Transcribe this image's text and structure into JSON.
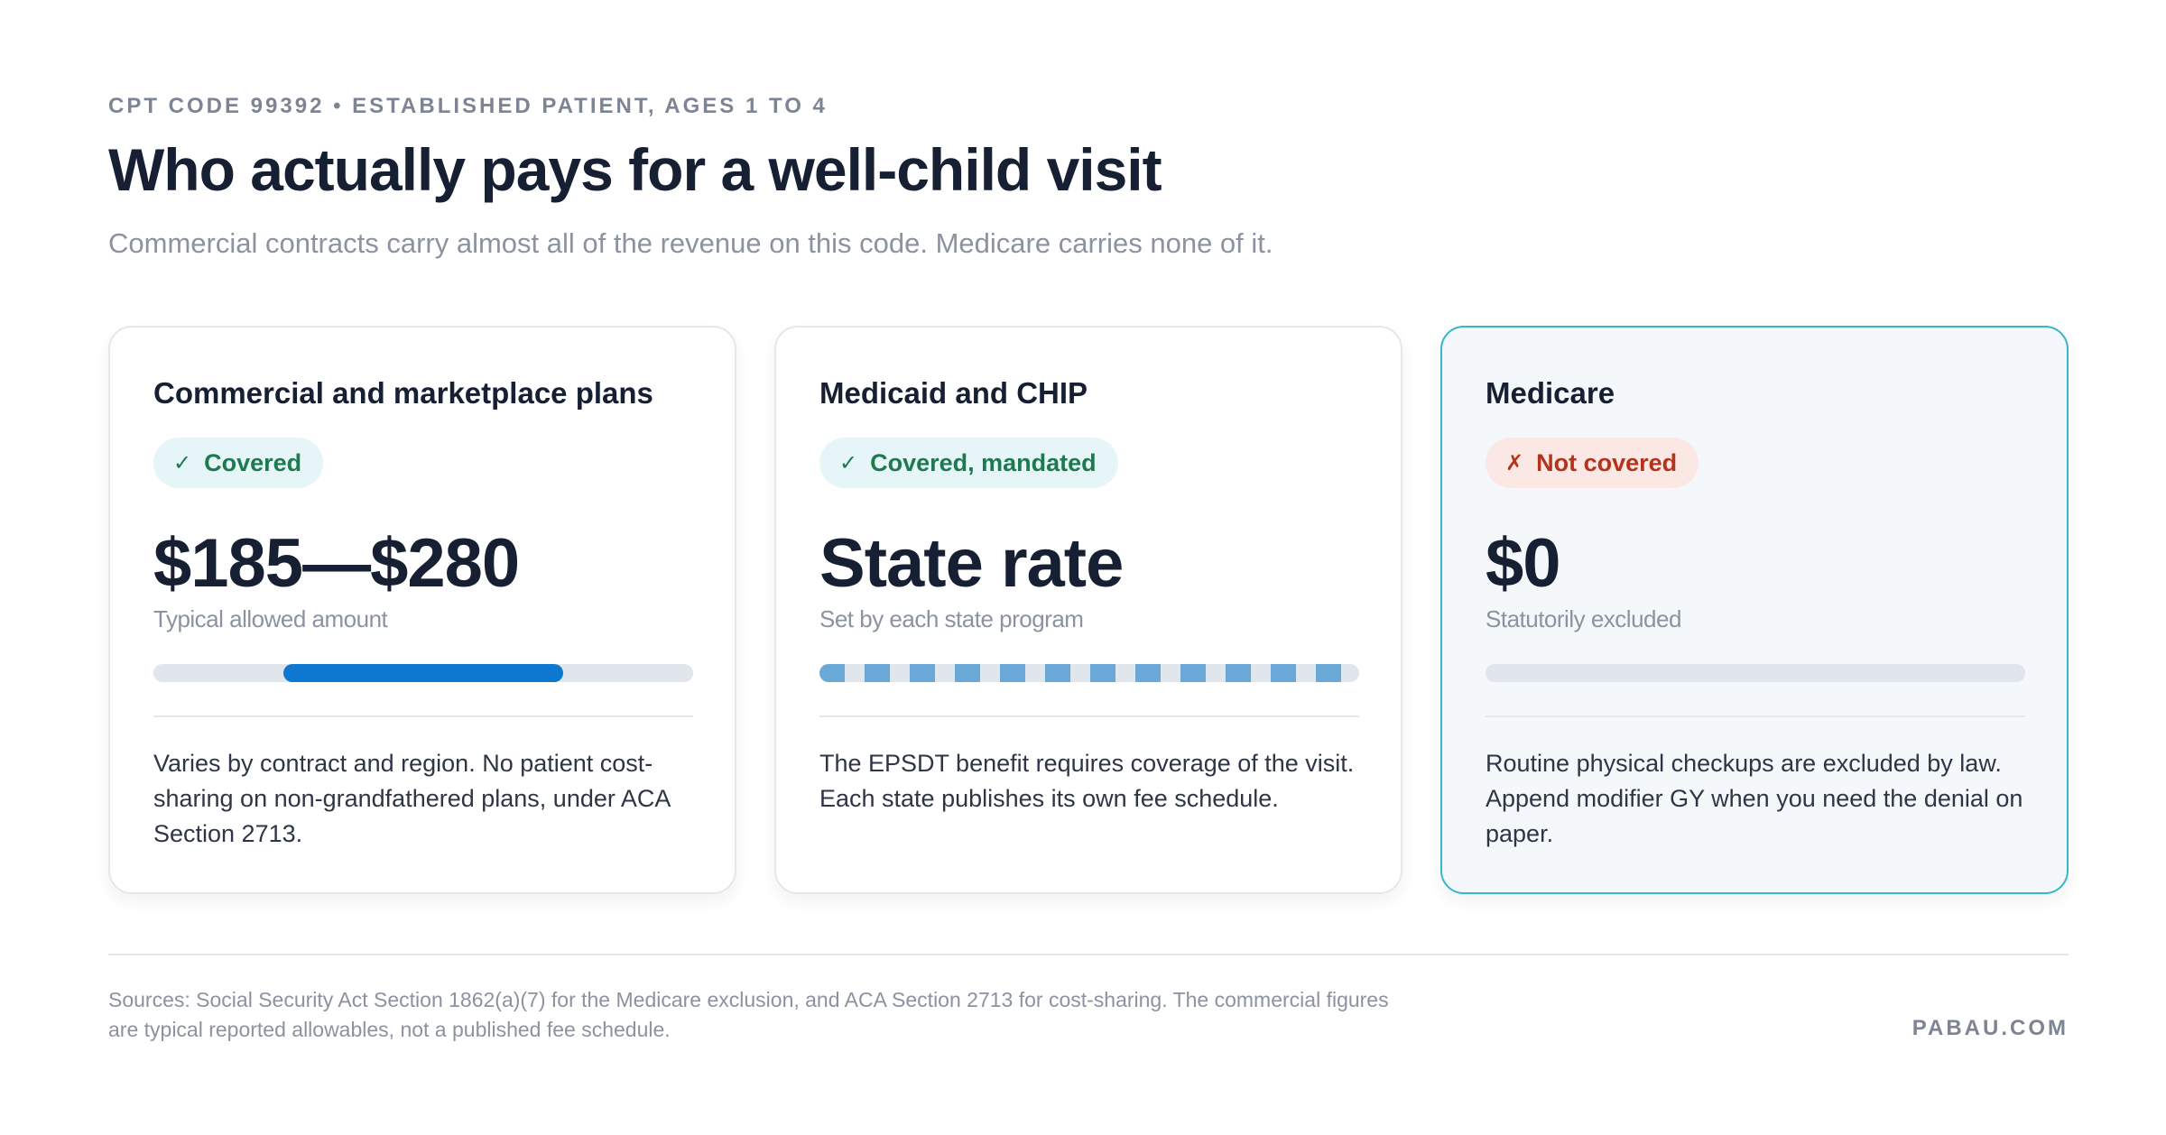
{
  "header": {
    "eyebrow": "CPT CODE 99392 • ESTABLISHED PATIENT, AGES 1 TO 4",
    "title": "Who actually pays for a well-child visit",
    "subtitle": "Commercial contracts carry almost all of the revenue on this code. Medicare carries none of it."
  },
  "cards": [
    {
      "title": "Commercial and marketplace plans",
      "badge": {
        "icon": "✓",
        "label": "Covered",
        "status": "covered",
        "color": "#1e7a4e"
      },
      "amount": "$185—$280",
      "caption": "Typical allowed amount",
      "bar": {
        "style": "range",
        "range_start": 0.24,
        "range_end": 0.76,
        "color": "#0e78d0"
      },
      "body": "Varies by contract and region. No patient cost-sharing on non-grandfathered plans, under ACA Section 2713."
    },
    {
      "title": "Medicaid and CHIP",
      "badge": {
        "icon": "✓",
        "label": "Covered, mandated",
        "status": "covered",
        "color": "#1e7a4e"
      },
      "amount": "State rate",
      "caption": "Set by each state program",
      "bar": {
        "style": "dashed",
        "color": "#6aa8d8"
      },
      "body": "The EPSDT benefit requires coverage of the visit. Each state publishes its own fee schedule."
    },
    {
      "title": "Medicare",
      "badge": {
        "icon": "✗",
        "label": "Not covered",
        "status": "not-covered",
        "color": "#b3341d"
      },
      "amount": "$0",
      "caption": "Statutorily excluded",
      "bar": {
        "style": "empty"
      },
      "body": "Routine physical checkups are excluded by law. Append modifier GY when you need the denial on paper.",
      "highlight_color": "#34b7cc"
    }
  ],
  "footer": {
    "sources": "Sources: Social Security Act Section 1862(a)(7) for the Medicare exclusion, and ACA Section 2713 for cost-sharing. The commercial figures are typical reported allowables, not a published fee schedule.",
    "brand": "PABAU.COM"
  }
}
